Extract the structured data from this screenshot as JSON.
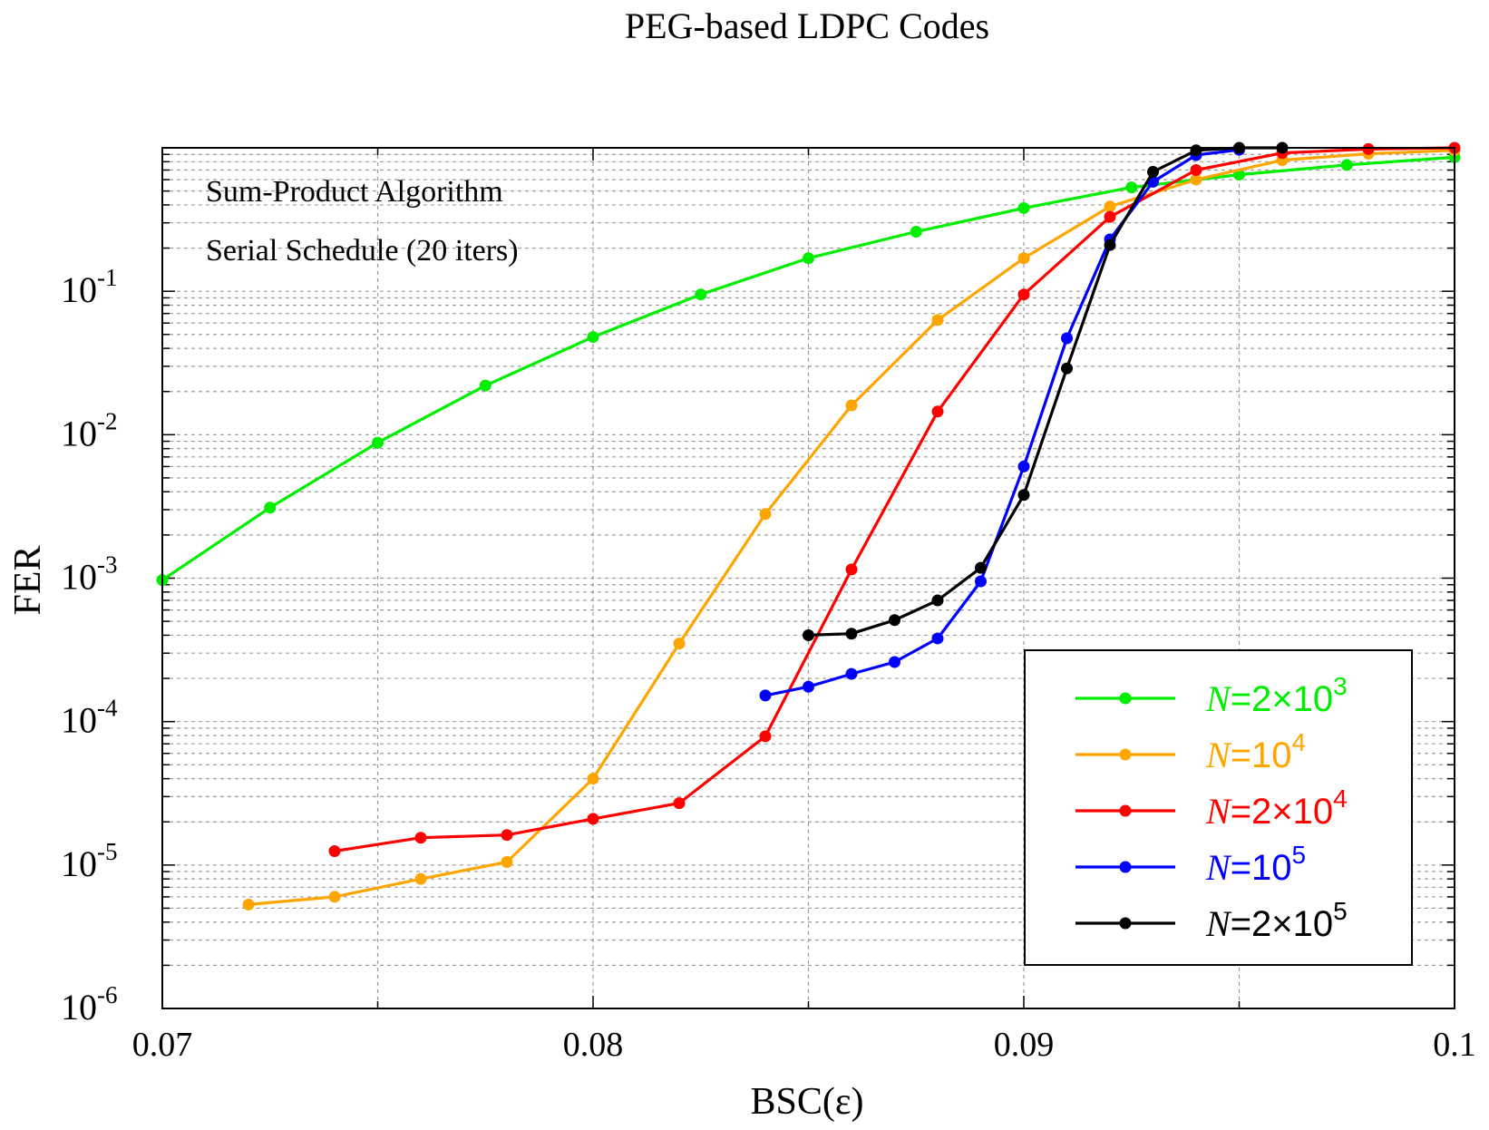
{
  "chart_data": {
    "type": "line",
    "title": "PEG-based LDPC Codes",
    "xlabel": "BSC(ε)",
    "ylabel": "FER",
    "xlim": [
      0.07,
      0.1
    ],
    "ylim": [
      1e-06,
      1
    ],
    "yscale": "log",
    "grid": true,
    "legend_position": "bottom-right",
    "x_ticks": [
      "0.07",
      "0.08",
      "0.09",
      "0.1"
    ],
    "y_ticks": [
      {
        "base": "10",
        "exp": "-1",
        "value": 0.1
      },
      {
        "base": "10",
        "exp": "-2",
        "value": 0.01
      },
      {
        "base": "10",
        "exp": "-3",
        "value": 0.001
      },
      {
        "base": "10",
        "exp": "-4",
        "value": 0.0001
      },
      {
        "base": "10",
        "exp": "-5",
        "value": 1e-05
      },
      {
        "base": "10",
        "exp": "-6",
        "value": 1e-06
      }
    ],
    "annotations": [
      "Sum-Product Algorithm",
      "Serial Schedule (20 iters)"
    ],
    "series": [
      {
        "label_prefix": "N",
        "label_rest": "=2×10",
        "label_exp": "3",
        "color": "#00ee00",
        "x": [
          0.07,
          0.0725,
          0.075,
          0.0775,
          0.08,
          0.0825,
          0.085,
          0.0875,
          0.09,
          0.0925,
          0.095,
          0.0975,
          0.1
        ],
        "y": [
          0.00097,
          0.0031,
          0.0088,
          0.022,
          0.048,
          0.095,
          0.17,
          0.26,
          0.38,
          0.53,
          0.65,
          0.76,
          0.86
        ]
      },
      {
        "label_prefix": "N",
        "label_rest": "=10",
        "label_exp": "4",
        "color": "#ffa500",
        "x": [
          0.072,
          0.074,
          0.076,
          0.078,
          0.08,
          0.082,
          0.084,
          0.086,
          0.088,
          0.09,
          0.092,
          0.094,
          0.096,
          0.098,
          0.1
        ],
        "y": [
          5.3e-06,
          6e-06,
          8e-06,
          1.05e-05,
          4e-05,
          0.00035,
          0.0028,
          0.016,
          0.063,
          0.17,
          0.39,
          0.6,
          0.82,
          0.91,
          0.96
        ]
      },
      {
        "label_prefix": "N",
        "label_rest": "=2×10",
        "label_exp": "4",
        "color": "#ff0000",
        "x": [
          0.074,
          0.076,
          0.078,
          0.08,
          0.082,
          0.084,
          0.086,
          0.088,
          0.09,
          0.092,
          0.094,
          0.096,
          0.098,
          0.1
        ],
        "y": [
          1.25e-05,
          1.55e-05,
          1.62e-05,
          2.1e-05,
          2.7e-05,
          7.9e-05,
          0.00115,
          0.0145,
          0.095,
          0.33,
          0.7,
          0.92,
          0.98,
          1.0
        ]
      },
      {
        "label_prefix": "N",
        "label_rest": "=10",
        "label_exp": "5",
        "color": "#0000ff",
        "x": [
          0.084,
          0.085,
          0.086,
          0.087,
          0.088,
          0.089,
          0.09,
          0.091,
          0.092,
          0.093,
          0.094,
          0.095
        ],
        "y": [
          0.000152,
          0.000175,
          0.000215,
          0.00026,
          0.00038,
          0.00095,
          0.006,
          0.047,
          0.23,
          0.58,
          0.89,
          0.97
        ]
      },
      {
        "label_prefix": "N",
        "label_rest": "=2×10",
        "label_exp": "5",
        "color": "#000000",
        "x": [
          0.085,
          0.086,
          0.087,
          0.088,
          0.089,
          0.09,
          0.091,
          0.092,
          0.093,
          0.094,
          0.095,
          0.096
        ],
        "y": [
          0.0004,
          0.00041,
          0.00051,
          0.0007,
          0.00118,
          0.0038,
          0.029,
          0.21,
          0.68,
          0.96,
          1.0,
          1.0
        ]
      }
    ]
  }
}
